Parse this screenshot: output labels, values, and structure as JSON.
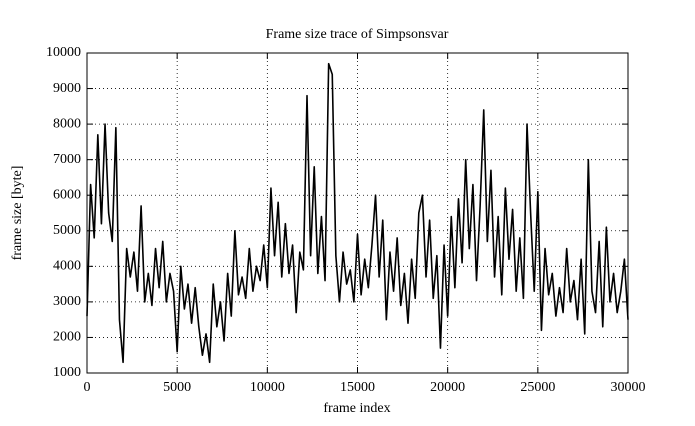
{
  "chart_data": {
    "type": "line",
    "title": "Frame size trace of Simpsonsvar",
    "xlabel": "frame index",
    "ylabel": "frame size [byte]",
    "x": [
      0,
      200,
      400,
      600,
      800,
      1000,
      1200,
      1400,
      1600,
      1800,
      2000,
      2200,
      2400,
      2600,
      2800,
      3000,
      3200,
      3400,
      3600,
      3800,
      4000,
      4200,
      4400,
      4600,
      4800,
      5000,
      5200,
      5400,
      5600,
      5800,
      6000,
      6200,
      6400,
      6600,
      6800,
      7000,
      7200,
      7400,
      7600,
      7800,
      8000,
      8200,
      8400,
      8600,
      8800,
      9000,
      9200,
      9400,
      9600,
      9800,
      10000,
      10200,
      10400,
      10600,
      10800,
      11000,
      11200,
      11400,
      11600,
      11800,
      12000,
      12200,
      12400,
      12600,
      12800,
      13000,
      13200,
      13400,
      13600,
      13800,
      14000,
      14200,
      14400,
      14600,
      14800,
      15000,
      15200,
      15400,
      15600,
      15800,
      16000,
      16200,
      16400,
      16600,
      16800,
      17000,
      17200,
      17400,
      17600,
      17800,
      18000,
      18200,
      18400,
      18600,
      18800,
      19000,
      19200,
      19400,
      19600,
      19800,
      20000,
      20200,
      20400,
      20600,
      20800,
      21000,
      21200,
      21400,
      21600,
      21800,
      22000,
      22200,
      22400,
      22600,
      22800,
      23000,
      23200,
      23400,
      23600,
      23800,
      24000,
      24200,
      24400,
      24600,
      24800,
      25000,
      25200,
      25400,
      25600,
      25800,
      26000,
      26200,
      26400,
      26600,
      26800,
      27000,
      27200,
      27400,
      27600,
      27800,
      28000,
      28200,
      28400,
      28600,
      28800,
      29000,
      29200,
      29400,
      29600,
      29800,
      30000
    ],
    "series": [
      {
        "name": "Simpsonsvar",
        "color": "#000000",
        "values": [
          2600,
          6300,
          4800,
          7700,
          5200,
          8000,
          5500,
          4700,
          7900,
          2500,
          1300,
          4500,
          3700,
          4400,
          3300,
          5700,
          3000,
          3800,
          2900,
          4500,
          3400,
          4700,
          3000,
          3800,
          3300,
          1600,
          4000,
          2800,
          3500,
          2400,
          3400,
          2300,
          1500,
          2100,
          1300,
          3500,
          2300,
          3000,
          1900,
          3800,
          2600,
          5000,
          3200,
          3700,
          3100,
          4500,
          3300,
          4000,
          3600,
          4600,
          3400,
          6200,
          4300,
          5800,
          3700,
          5200,
          3800,
          4600,
          2700,
          4400,
          3900,
          8800,
          4300,
          6800,
          3800,
          5400,
          3600,
          9700,
          9400,
          4300,
          3000,
          4400,
          3500,
          3900,
          3000,
          4900,
          3200,
          4200,
          3400,
          4600,
          6000,
          3700,
          5300,
          2500,
          4400,
          3300,
          4800,
          2900,
          3800,
          2400,
          4200,
          3100,
          5500,
          6000,
          3700,
          5300,
          3100,
          4300,
          1700,
          4600,
          2600,
          5400,
          3400,
          5900,
          4100,
          7000,
          4500,
          6300,
          3600,
          5700,
          8400,
          4700,
          6700,
          3700,
          5400,
          3200,
          6200,
          4200,
          5600,
          3300,
          4800,
          3100,
          8000,
          5500,
          3300,
          6100,
          2200,
          4500,
          3200,
          3800,
          2600,
          3400,
          2700,
          4500,
          3000,
          3600,
          2500,
          4200,
          2100,
          7000,
          3300,
          2700,
          4700,
          2300,
          5100,
          3000,
          3800,
          2700,
          3300,
          4200,
          2500
        ]
      }
    ],
    "xlim": [
      0,
      30000
    ],
    "ylim": [
      1000,
      10000
    ],
    "xticks": [
      0,
      5000,
      10000,
      15000,
      20000,
      25000,
      30000
    ],
    "yticks": [
      1000,
      2000,
      3000,
      4000,
      5000,
      6000,
      7000,
      8000,
      9000,
      10000
    ],
    "grid": true
  }
}
